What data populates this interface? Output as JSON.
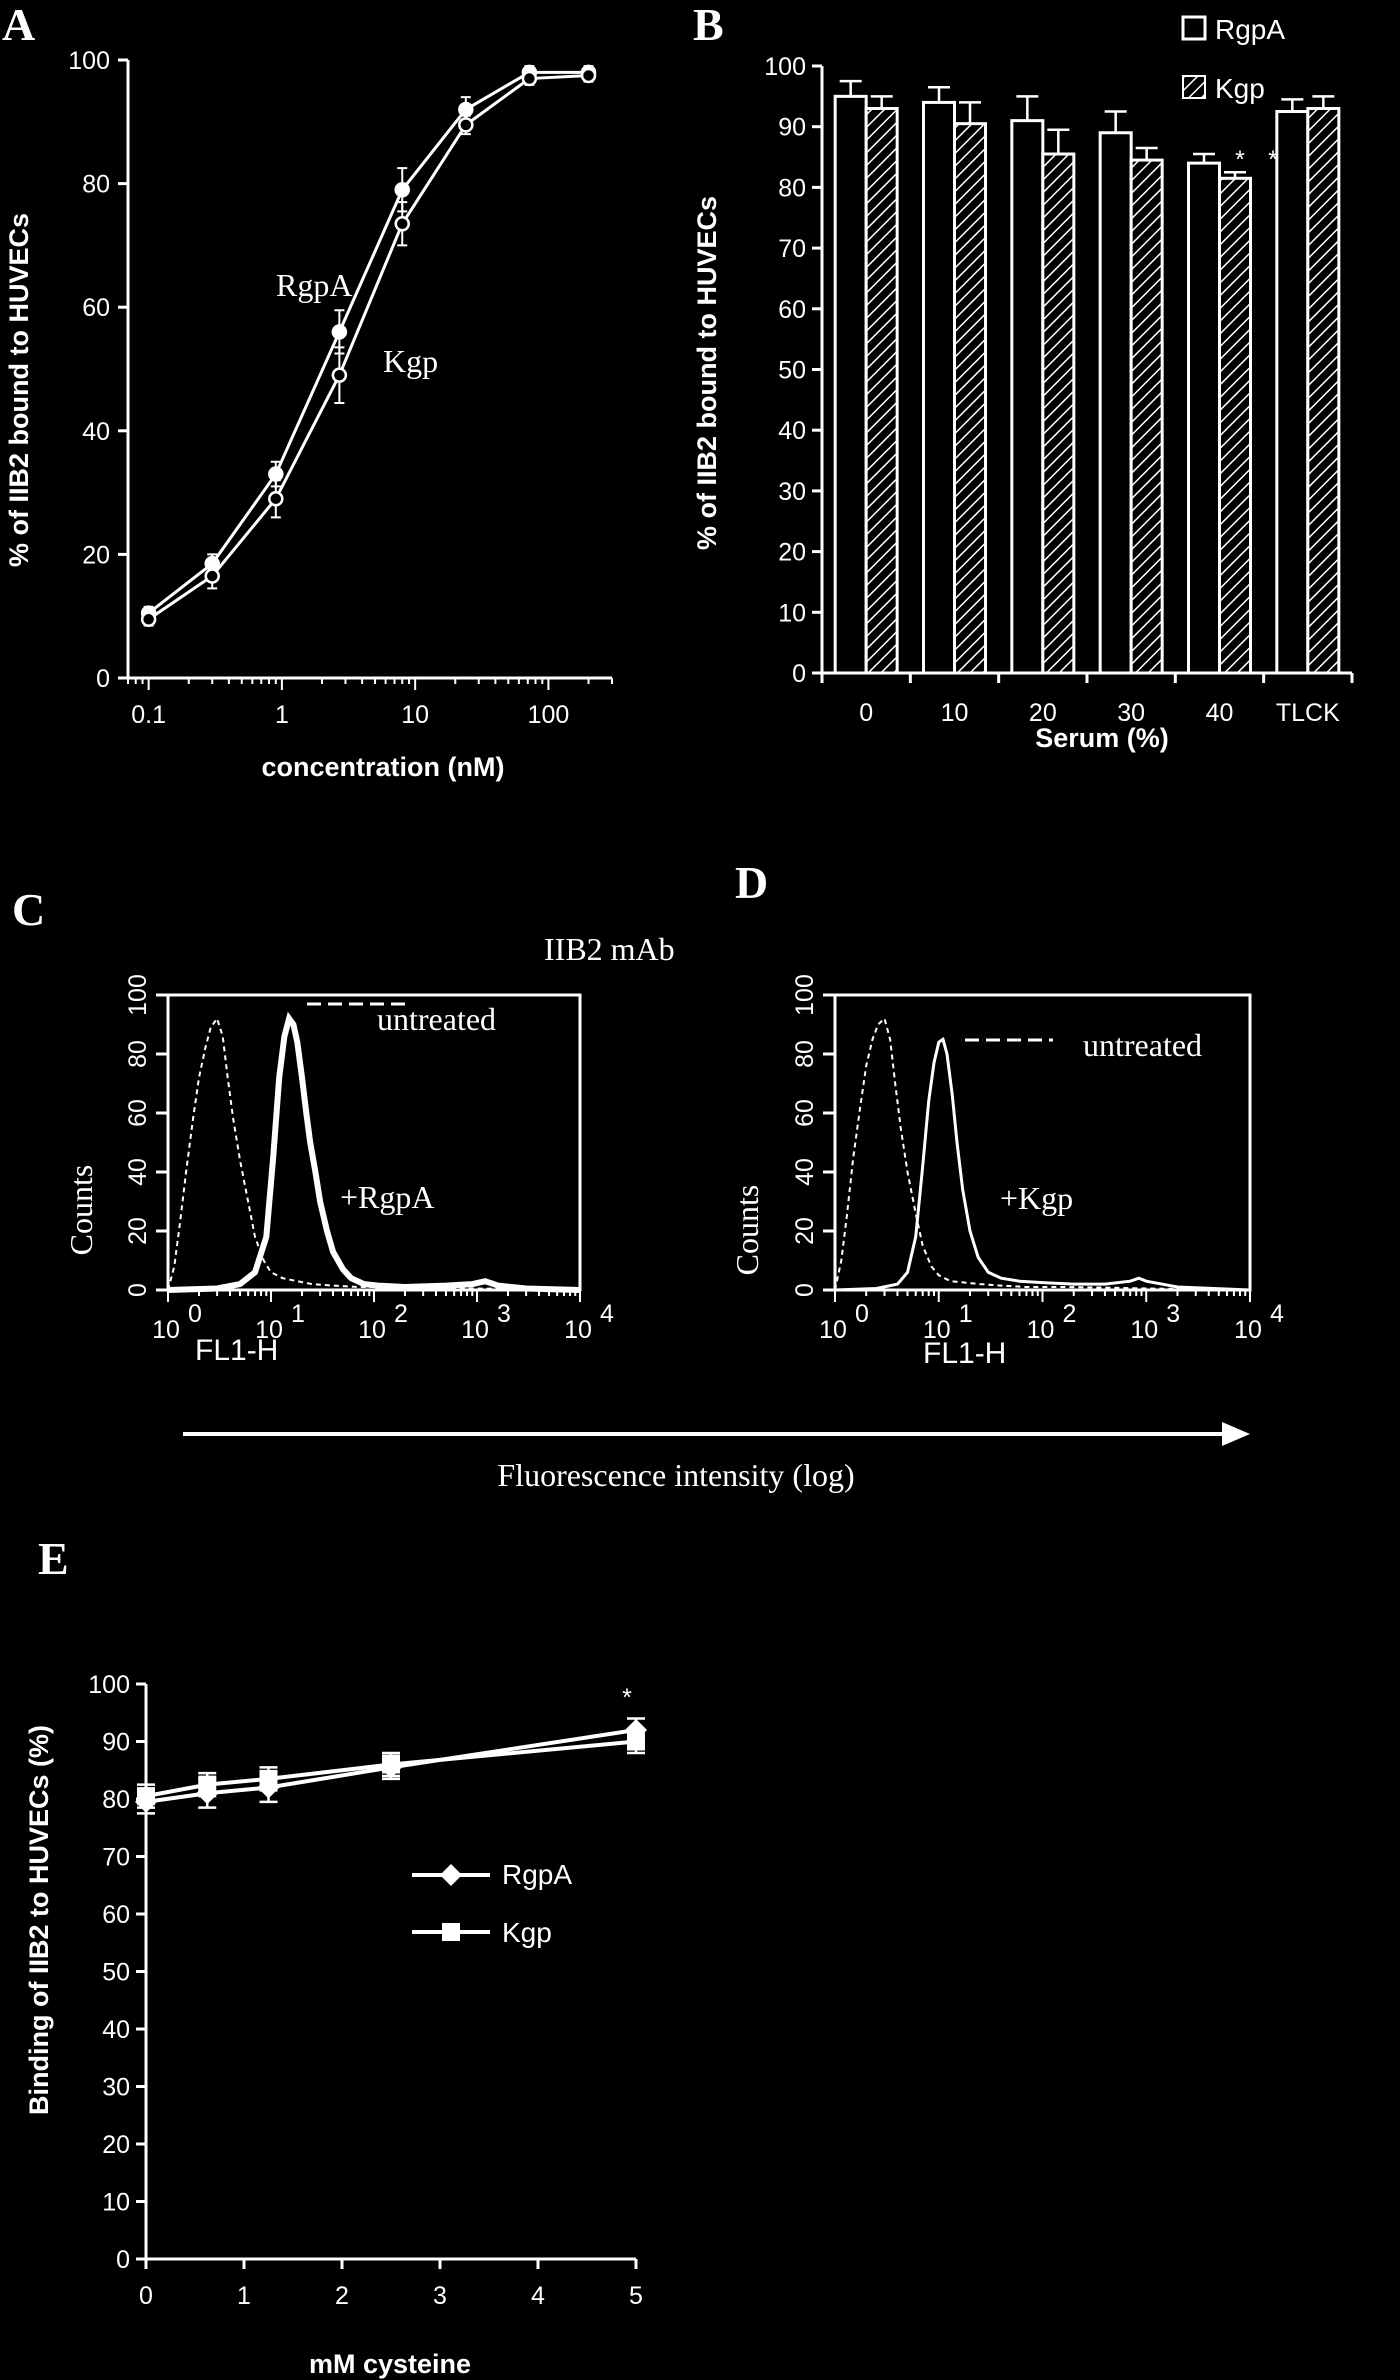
{
  "chart_data": [
    {
      "id": "A",
      "type": "line",
      "panel_label": "A",
      "xlabel": "concentration (nM)",
      "ylabel": "% of IIB2 bound to HUVECs",
      "x_scale": "log",
      "xlim": [
        0.07,
        300
      ],
      "ylim": [
        0,
        100
      ],
      "x_ticks": [
        0.1,
        1,
        10,
        100
      ],
      "x_tick_labels": [
        "0.1",
        "1",
        "10",
        "100"
      ],
      "y_ticks": [
        0,
        20,
        40,
        60,
        80,
        100
      ],
      "x": [
        0.1,
        0.3,
        0.9,
        2.7,
        8,
        24,
        72,
        200
      ],
      "series": [
        {
          "name": "RgpA",
          "values": [
            10.5,
            18.5,
            33,
            56,
            79,
            92,
            98,
            98
          ],
          "err": [
            1,
            1.5,
            2,
            3.5,
            3.5,
            2,
            1,
            1
          ],
          "marker": "filled-circle"
        },
        {
          "name": "Kgp",
          "values": [
            9.5,
            16.5,
            29,
            49,
            73.5,
            89.5,
            97,
            97.5
          ],
          "err": [
            1,
            2,
            3,
            4.5,
            3.5,
            1.5,
            1,
            1
          ],
          "marker": "open-circle"
        }
      ],
      "annotations": [
        "RgpA",
        "Kgp"
      ]
    },
    {
      "id": "B",
      "type": "bar",
      "panel_label": "B",
      "xlabel": "Serum (%)",
      "ylabel": "% of IIB2 bound to HUVECs",
      "ylim": [
        0,
        100
      ],
      "y_ticks": [
        0,
        10,
        20,
        30,
        40,
        50,
        60,
        70,
        80,
        90,
        100
      ],
      "categories": [
        "0",
        "10",
        "20",
        "30",
        "40",
        "TLCK"
      ],
      "series": [
        {
          "name": "RgpA",
          "values": [
            95,
            94,
            91,
            89,
            84,
            92.5
          ],
          "err": [
            2.5,
            2.5,
            4,
            3.5,
            1.5,
            2
          ],
          "pattern": "open"
        },
        {
          "name": "Kgp",
          "values": [
            93,
            90.5,
            85.5,
            84.5,
            81.5,
            93
          ],
          "err": [
            2,
            3.5,
            4,
            2,
            1,
            2
          ],
          "pattern": "hatched"
        }
      ],
      "annotations": [
        "*",
        "*"
      ],
      "legend": "top-right"
    },
    {
      "id": "C",
      "type": "line",
      "panel_label": "C",
      "title": "IIB2 mAb",
      "xlabel": "FL1-H",
      "ylabel": "Counts",
      "x_scale": "log",
      "xlim": [
        1,
        10000
      ],
      "ylim": [
        0,
        100
      ],
      "x_ticks": [
        1,
        10,
        100,
        1000,
        10000
      ],
      "x_tick_bases": [
        "10",
        "10",
        "10",
        "10",
        "10"
      ],
      "x_tick_exps": [
        "0",
        "1",
        "2",
        "3",
        "4"
      ],
      "y_ticks": [
        0,
        20,
        40,
        60,
        80,
        100
      ],
      "series": [
        {
          "name": "untreated",
          "style": "dashed",
          "x": [
            1.0,
            1.15,
            1.3,
            1.5,
            1.75,
            2.0,
            2.3,
            2.6,
            3.0,
            3.4,
            3.8,
            4.3,
            5.0,
            6.0,
            7.0,
            8.5,
            10,
            13,
            18,
            25,
            40,
            70,
            150,
            400,
            1000,
            3000,
            10000
          ],
          "values": [
            0,
            8,
            22,
            40,
            58,
            72,
            82,
            89,
            92,
            86,
            72,
            58,
            44,
            30,
            18,
            10,
            6,
            4,
            3,
            2,
            1.5,
            1,
            1,
            0.8,
            0.5,
            0.3,
            0
          ]
        },
        {
          "name": "+RgpA",
          "style": "solid-thick",
          "x": [
            1,
            3,
            5,
            7,
            9,
            10.5,
            12,
            13.5,
            15,
            16.5,
            18,
            20,
            22,
            24,
            27,
            30,
            35,
            40,
            50,
            60,
            80,
            110,
            200,
            500,
            900,
            1200,
            1600,
            3000,
            10000
          ],
          "values": [
            0,
            0.5,
            2,
            6,
            18,
            45,
            72,
            86,
            92,
            90,
            84,
            72,
            60,
            50,
            40,
            30,
            20,
            13,
            7,
            4,
            2,
            1.5,
            1,
            1.5,
            2,
            3,
            1.5,
            0.5,
            0
          ]
        }
      ],
      "annotations": [
        "untreated",
        "+RgpA"
      ]
    },
    {
      "id": "D",
      "type": "line",
      "panel_label": "D",
      "xlabel": "FL1-H",
      "ylabel": "Counts",
      "x_scale": "log",
      "xlim": [
        1,
        10000
      ],
      "ylim": [
        0,
        100
      ],
      "x_ticks": [
        1,
        10,
        100,
        1000,
        10000
      ],
      "x_tick_bases": [
        "10",
        "10",
        "10",
        "10",
        "10"
      ],
      "x_tick_exps": [
        "0",
        "1",
        "2",
        "3",
        "4"
      ],
      "y_ticks": [
        0,
        20,
        40,
        60,
        80,
        100
      ],
      "series": [
        {
          "name": "untreated",
          "style": "dashed",
          "x": [
            1.0,
            1.15,
            1.3,
            1.5,
            1.75,
            2.0,
            2.3,
            2.6,
            3.0,
            3.4,
            3.8,
            4.3,
            5.0,
            6.0,
            7.0,
            8.5,
            10,
            13,
            18,
            25,
            40,
            70,
            150,
            400,
            1000,
            3000,
            10000
          ],
          "values": [
            0,
            10,
            25,
            45,
            62,
            76,
            85,
            90,
            92,
            85,
            70,
            55,
            40,
            26,
            15,
            8,
            5,
            3,
            2.5,
            2,
            1.5,
            1,
            1,
            0.8,
            0.5,
            0.3,
            0
          ]
        },
        {
          "name": "+Kgp",
          "style": "solid",
          "x": [
            1,
            2.5,
            4,
            5,
            6,
            7,
            8,
            9,
            10,
            11,
            12,
            13.5,
            15,
            17,
            20,
            24,
            30,
            40,
            60,
            100,
            200,
            400,
            700,
            850,
            1000,
            2000,
            10000
          ],
          "values": [
            0,
            0.5,
            2,
            6,
            18,
            42,
            64,
            77,
            84,
            85,
            80,
            66,
            50,
            34,
            20,
            11,
            6,
            4,
            3,
            2.5,
            2,
            2,
            3,
            4,
            3,
            1,
            0
          ]
        }
      ],
      "annotations": [
        "untreated",
        "+Kgp"
      ]
    },
    {
      "id": "E",
      "type": "line",
      "panel_label": "E",
      "xlabel": "mM cysteine",
      "ylabel": "Binding of IIB2 to HUVECs (%)",
      "xlim": [
        0,
        5
      ],
      "ylim": [
        0,
        100
      ],
      "x_ticks": [
        0,
        1,
        2,
        3,
        4,
        5
      ],
      "y_ticks": [
        0,
        10,
        20,
        30,
        40,
        50,
        60,
        70,
        80,
        90,
        100
      ],
      "x": [
        0,
        0.625,
        1.25,
        2.5,
        5
      ],
      "series": [
        {
          "name": "RgpA",
          "values": [
            79.5,
            81,
            82,
            85.5,
            92
          ],
          "err": [
            2,
            2.5,
            2.5,
            2,
            2
          ],
          "marker": "diamond"
        },
        {
          "name": "Kgp",
          "values": [
            80.5,
            82.5,
            83.5,
            86,
            90
          ],
          "err": [
            2,
            2,
            2,
            2,
            2
          ],
          "marker": "square"
        }
      ],
      "annotations": [
        "*"
      ],
      "legend": "center"
    }
  ],
  "shared_axis_label": "Fluorescence intensity (log)"
}
